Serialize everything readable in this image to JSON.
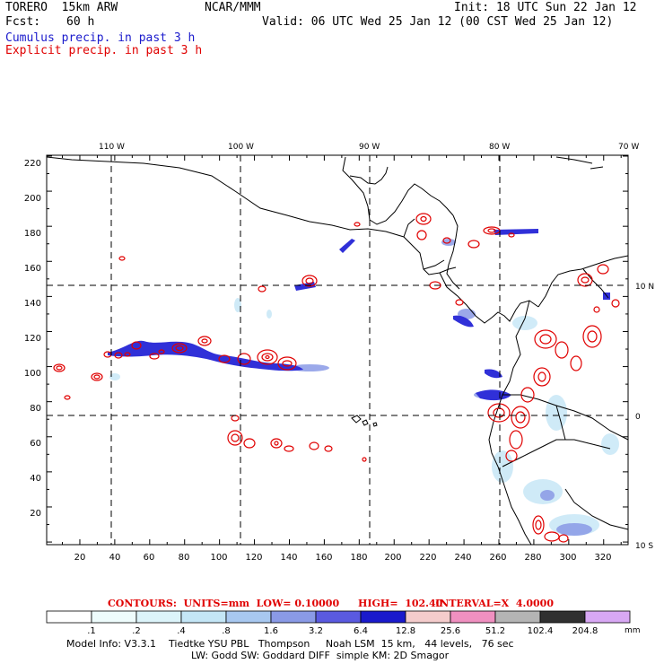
{
  "header": {
    "model": "TORERO  15km ARW",
    "org": "NCAR/MMM",
    "init": "Init: 18 UTC Sun 22 Jan 12",
    "fcst_label": "Fcst:",
    "fcst_value": "60 h",
    "valid": "Valid: 06 UTC Wed 25 Jan 12 (00 CST Wed 25 Jan 12)",
    "cumulus": "Cumulus precip. in past 3 h",
    "explicit": "Explicit precip. in past 3 h"
  },
  "map": {
    "lon_labels": [
      "110 W",
      "100 W",
      "90 W",
      "80 W",
      "70 W"
    ],
    "lat_labels": [
      "10 N",
      "0",
      "10 S"
    ],
    "y_ticks": [
      "220",
      "200",
      "180",
      "160",
      "140",
      "120",
      "100",
      "80",
      "60",
      "40",
      "20"
    ],
    "x_ticks": [
      "20",
      "40",
      "60",
      "80",
      "100",
      "120",
      "140",
      "160",
      "180",
      "200",
      "220",
      "240",
      "260",
      "280",
      "300",
      "320"
    ]
  },
  "contour_caption": {
    "contours": "CONTOURS:  UNITS=mm  LOW= 0.10000",
    "high": "HIGH=  102.40",
    "interval": "INTERVAL=X  4.0000"
  },
  "legend": {
    "unit": "mm",
    "labels": [
      ".1",
      ".2",
      ".4",
      ".8",
      "1.6",
      "3.2",
      "6.4",
      "12.8",
      "25.6",
      "51.2",
      "102.4",
      "204.8"
    ],
    "colors": [
      "#ffffff",
      "#eefcfc",
      "#dcf4fa",
      "#c4e6f6",
      "#a8c8f0",
      "#8a9ae6",
      "#5a5ae0",
      "#1a1acc",
      "#f4cccc",
      "#f090c0",
      "#b4b4b4",
      "#303030",
      "#d8a8f4"
    ]
  },
  "footer": {
    "line1": "Model Info: V3.3.1    Tiedtke YSU PBL   Thompson     Noah LSM  15 km,   44 levels,   76 sec",
    "line2": "LW: Godd SW: Goddard DIFF  simple KM: 2D Smagor"
  }
}
